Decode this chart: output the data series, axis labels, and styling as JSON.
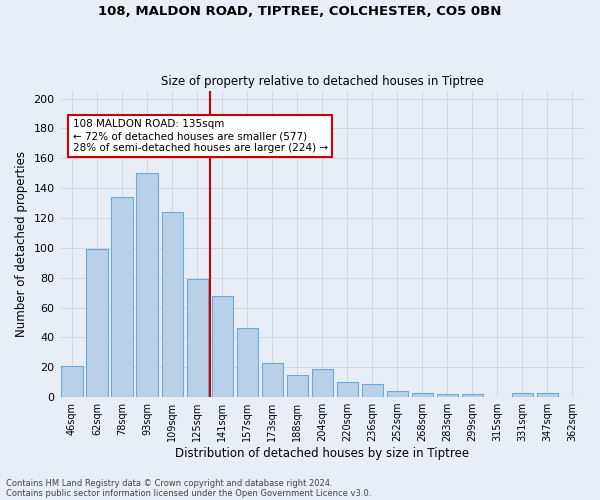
{
  "title1": "108, MALDON ROAD, TIPTREE, COLCHESTER, CO5 0BN",
  "title2": "Size of property relative to detached houses in Tiptree",
  "xlabel": "Distribution of detached houses by size in Tiptree",
  "ylabel": "Number of detached properties",
  "categories": [
    "46sqm",
    "62sqm",
    "78sqm",
    "93sqm",
    "109sqm",
    "125sqm",
    "141sqm",
    "157sqm",
    "173sqm",
    "188sqm",
    "204sqm",
    "220sqm",
    "236sqm",
    "252sqm",
    "268sqm",
    "283sqm",
    "299sqm",
    "315sqm",
    "331sqm",
    "347sqm",
    "362sqm"
  ],
  "values": [
    21,
    99,
    134,
    150,
    124,
    79,
    68,
    46,
    23,
    15,
    19,
    10,
    9,
    4,
    3,
    2,
    2,
    0,
    3,
    3,
    0
  ],
  "bar_color": "#b8d0e8",
  "bar_edge_color": "#6aaad4",
  "vline_x_idx": 6,
  "vline_color": "#cc0000",
  "annotation_text": "108 MALDON ROAD: 135sqm\n← 72% of detached houses are smaller (577)\n28% of semi-detached houses are larger (224) →",
  "annotation_box_color": "#ffffff",
  "annotation_box_edge_color": "#cc0000",
  "ylim": [
    0,
    205
  ],
  "yticks": [
    0,
    20,
    40,
    60,
    80,
    100,
    120,
    140,
    160,
    180,
    200
  ],
  "grid_color": "#d0d8e8",
  "bg_color": "#e8eef8",
  "footer1": "Contains HM Land Registry data © Crown copyright and database right 2024.",
  "footer2": "Contains public sector information licensed under the Open Government Licence v3.0."
}
